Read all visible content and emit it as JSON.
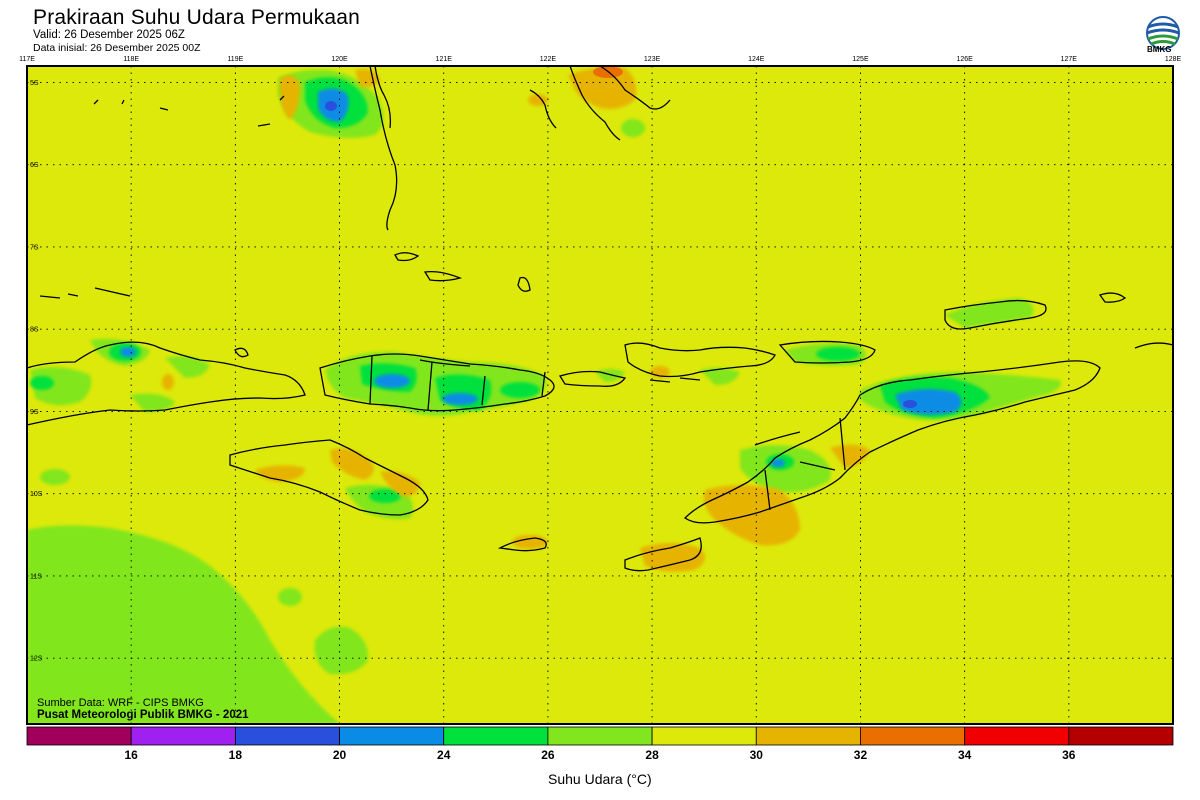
{
  "header": {
    "title": "Prakiraan Suhu Udara Permukaan",
    "valid": "Valid: 26 Desember 2025 06Z",
    "initial": "Data inisial: 26 Desember 2025 00Z",
    "logo_text": "BMKG"
  },
  "map": {
    "lon_labels": [
      "117E",
      "118E",
      "119E",
      "120E",
      "121E",
      "122E",
      "123E",
      "124E",
      "125E",
      "126E",
      "127E",
      "128E"
    ],
    "lat_labels": [
      "5S",
      "6S",
      "7S",
      "8S",
      "9S",
      "10S",
      "11S",
      "12S"
    ],
    "extent": {
      "lon_min": 117,
      "lon_max": 128,
      "lat_max": -4.8,
      "lat_min": -12.8
    },
    "field_color": "#dde90a",
    "coastline_color": "#000000"
  },
  "footer": {
    "source": "Sumber Data: WRF - CIPS BMKG",
    "publisher": "Pusat Meteorologi Publik BMKG - 2021"
  },
  "colorbar": {
    "title": "Suhu Udara (°C)",
    "labels": [
      "16",
      "18",
      "20",
      "24",
      "26",
      "28",
      "30",
      "32",
      "34",
      "36"
    ],
    "colors": [
      "#a0005c",
      "#a020f0",
      "#2850dc",
      "#0a8ce6",
      "#00e13c",
      "#82e61e",
      "#dde90a",
      "#e6b400",
      "#ea6e00",
      "#f00000",
      "#b40000"
    ]
  }
}
